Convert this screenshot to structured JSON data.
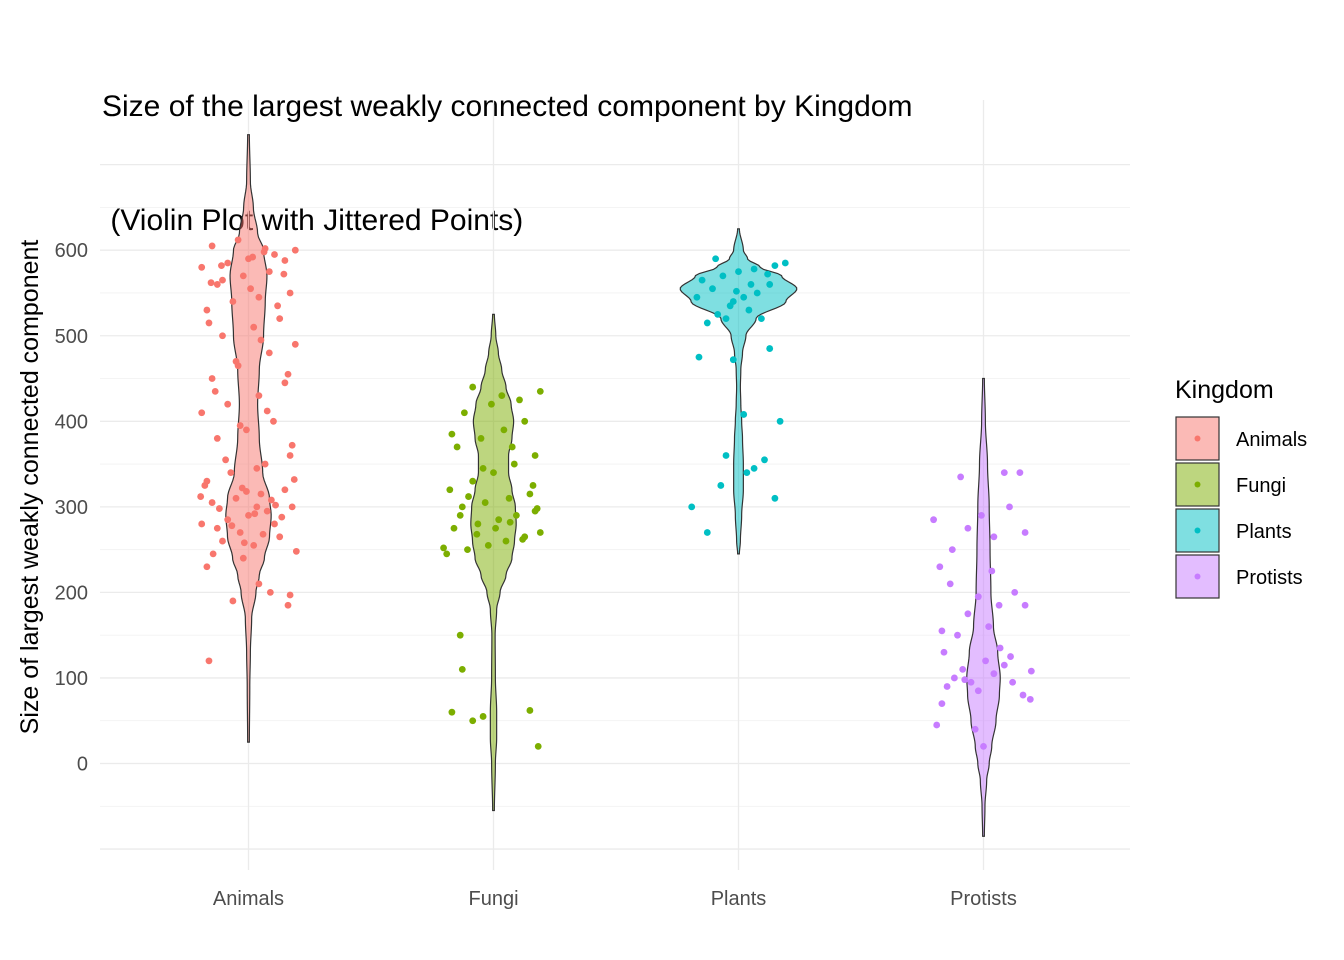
{
  "chart_data": {
    "type": "violin",
    "title": "Size of the largest weakly connected component by Kingdom",
    "subtitle": " (Violin Plot with Jittered Points)",
    "xlabel": "",
    "ylabel": "Size of  largest weakly connected component",
    "ylim": [
      -100,
      720
    ],
    "yticks": [
      0,
      100,
      200,
      300,
      400,
      500,
      600
    ],
    "ytick_labels": [
      "0",
      "100",
      "200",
      "300",
      "400",
      "500",
      "600"
    ],
    "categories": [
      "Animals",
      "Fungi",
      "Plants",
      "Protists"
    ],
    "grid": true,
    "legend": {
      "title": "Kingdom",
      "position": "right",
      "entries": [
        "Animals",
        "Fungi",
        "Plants",
        "Protists"
      ]
    },
    "colors": {
      "Animals": "#F8766D",
      "Fungi": "#7CAE00",
      "Plants": "#00BFC4",
      "Protists": "#C77CFF"
    },
    "violins": [
      {
        "name": "Animals",
        "range": [
          25,
          735
        ],
        "width_profile": [
          [
            25,
            0.3
          ],
          [
            90,
            0.8
          ],
          [
            130,
            1.5
          ],
          [
            170,
            3
          ],
          [
            200,
            8
          ],
          [
            220,
            12
          ],
          [
            240,
            18
          ],
          [
            265,
            24
          ],
          [
            290,
            26
          ],
          [
            310,
            24
          ],
          [
            340,
            16
          ],
          [
            380,
            12
          ],
          [
            420,
            10
          ],
          [
            460,
            12
          ],
          [
            500,
            17
          ],
          [
            540,
            19
          ],
          [
            570,
            21
          ],
          [
            600,
            17
          ],
          [
            620,
            10
          ],
          [
            650,
            5
          ],
          [
            680,
            1.5
          ],
          [
            735,
            0.3
          ]
        ],
        "points": [
          [
            0.12,
            120
          ],
          [
            0.35,
            190
          ],
          [
            0.71,
            200
          ],
          [
            0.88,
            185
          ],
          [
            0.9,
            197
          ],
          [
            0.1,
            230
          ],
          [
            0.45,
            240
          ],
          [
            0.6,
            210
          ],
          [
            0.25,
            260
          ],
          [
            0.55,
            255
          ],
          [
            0.8,
            265
          ],
          [
            0.05,
            280
          ],
          [
            0.3,
            285
          ],
          [
            0.5,
            290
          ],
          [
            0.68,
            295
          ],
          [
            0.92,
            300
          ],
          [
            0.15,
            305
          ],
          [
            0.38,
            310
          ],
          [
            0.62,
            315
          ],
          [
            0.85,
            320
          ],
          [
            0.2,
            275
          ],
          [
            0.75,
            280
          ],
          [
            0.42,
            270
          ],
          [
            0.58,
            300
          ],
          [
            0.1,
            330
          ],
          [
            0.33,
            340
          ],
          [
            0.66,
            350
          ],
          [
            0.9,
            360
          ],
          [
            0.2,
            380
          ],
          [
            0.48,
            390
          ],
          [
            0.74,
            400
          ],
          [
            0.05,
            410
          ],
          [
            0.3,
            420
          ],
          [
            0.6,
            430
          ],
          [
            0.85,
            445
          ],
          [
            0.15,
            450
          ],
          [
            0.4,
            465
          ],
          [
            0.7,
            480
          ],
          [
            0.95,
            490
          ],
          [
            0.25,
            500
          ],
          [
            0.55,
            510
          ],
          [
            0.8,
            520
          ],
          [
            0.1,
            530
          ],
          [
            0.35,
            540
          ],
          [
            0.6,
            545
          ],
          [
            0.9,
            550
          ],
          [
            0.2,
            560
          ],
          [
            0.45,
            570
          ],
          [
            0.7,
            575
          ],
          [
            0.05,
            580
          ],
          [
            0.3,
            585
          ],
          [
            0.5,
            590
          ],
          [
            0.75,
            595
          ],
          [
            0.95,
            600
          ],
          [
            0.15,
            605
          ],
          [
            0.4,
            612
          ],
          [
            0.65,
            598
          ],
          [
            0.85,
            588
          ],
          [
            0.25,
            565
          ],
          [
            0.52,
            555
          ],
          [
            0.78,
            535
          ],
          [
            0.12,
            515
          ],
          [
            0.62,
            495
          ],
          [
            0.38,
            470
          ],
          [
            0.88,
            455
          ],
          [
            0.18,
            435
          ],
          [
            0.68,
            412
          ],
          [
            0.42,
            395
          ],
          [
            0.92,
            372
          ],
          [
            0.28,
            355
          ],
          [
            0.58,
            345
          ],
          [
            0.08,
            325
          ],
          [
            0.48,
            318
          ],
          [
            0.72,
            308
          ],
          [
            0.22,
            298
          ],
          [
            0.82,
            288
          ],
          [
            0.34,
            278
          ],
          [
            0.64,
            268
          ],
          [
            0.46,
            258
          ],
          [
            0.96,
            248
          ],
          [
            0.16,
            245
          ],
          [
            0.56,
            292
          ],
          [
            0.76,
            302
          ],
          [
            0.04,
            312
          ],
          [
            0.44,
            322
          ],
          [
            0.94,
            332
          ],
          [
            0.24,
            582
          ],
          [
            0.54,
            592
          ],
          [
            0.84,
            572
          ],
          [
            0.14,
            562
          ],
          [
            0.66,
            602
          ]
        ]
      },
      {
        "name": "Fungi",
        "range": [
          -55,
          525
        ],
        "width_profile": [
          [
            -55,
            0.3
          ],
          [
            0,
            1.5
          ],
          [
            30,
            3
          ],
          [
            60,
            3
          ],
          [
            100,
            1.5
          ],
          [
            150,
            1.2
          ],
          [
            180,
            3
          ],
          [
            200,
            7
          ],
          [
            220,
            14
          ],
          [
            240,
            21
          ],
          [
            260,
            24
          ],
          [
            280,
            26
          ],
          [
            300,
            25
          ],
          [
            320,
            21
          ],
          [
            340,
            17
          ],
          [
            360,
            17
          ],
          [
            380,
            21
          ],
          [
            400,
            23
          ],
          [
            420,
            20
          ],
          [
            440,
            14
          ],
          [
            460,
            9
          ],
          [
            480,
            5
          ],
          [
            500,
            2
          ],
          [
            525,
            0.3
          ]
        ],
        "points": [
          [
            0.1,
            60
          ],
          [
            0.3,
            50
          ],
          [
            0.4,
            55
          ],
          [
            0.85,
            62
          ],
          [
            0.93,
            20
          ],
          [
            0.2,
            110
          ],
          [
            0.18,
            150
          ],
          [
            0.05,
            245
          ],
          [
            0.25,
            250
          ],
          [
            0.45,
            255
          ],
          [
            0.62,
            260
          ],
          [
            0.8,
            265
          ],
          [
            0.95,
            270
          ],
          [
            0.12,
            275
          ],
          [
            0.35,
            280
          ],
          [
            0.55,
            285
          ],
          [
            0.72,
            290
          ],
          [
            0.9,
            295
          ],
          [
            0.2,
            300
          ],
          [
            0.42,
            305
          ],
          [
            0.65,
            310
          ],
          [
            0.85,
            315
          ],
          [
            0.08,
            320
          ],
          [
            0.3,
            330
          ],
          [
            0.5,
            340
          ],
          [
            0.7,
            350
          ],
          [
            0.9,
            360
          ],
          [
            0.15,
            370
          ],
          [
            0.38,
            380
          ],
          [
            0.6,
            390
          ],
          [
            0.8,
            400
          ],
          [
            0.22,
            410
          ],
          [
            0.48,
            420
          ],
          [
            0.75,
            425
          ],
          [
            0.95,
            435
          ],
          [
            0.3,
            440
          ],
          [
            0.58,
            430
          ],
          [
            0.1,
            385
          ],
          [
            0.68,
            370
          ],
          [
            0.4,
            345
          ],
          [
            0.88,
            325
          ],
          [
            0.18,
            290
          ],
          [
            0.52,
            275
          ],
          [
            0.78,
            262
          ],
          [
            0.02,
            252
          ],
          [
            0.34,
            268
          ],
          [
            0.66,
            282
          ],
          [
            0.92,
            298
          ],
          [
            0.26,
            312
          ]
        ]
      },
      {
        "name": "Plants",
        "range": [
          245,
          625
        ],
        "width_profile": [
          [
            245,
            0.3
          ],
          [
            260,
            1.5
          ],
          [
            290,
            3
          ],
          [
            320,
            5
          ],
          [
            350,
            5
          ],
          [
            380,
            4
          ],
          [
            400,
            3
          ],
          [
            420,
            2
          ],
          [
            440,
            1.5
          ],
          [
            460,
            2
          ],
          [
            480,
            4
          ],
          [
            500,
            8
          ],
          [
            520,
            20
          ],
          [
            540,
            55
          ],
          [
            555,
            68
          ],
          [
            570,
            50
          ],
          [
            580,
            25
          ],
          [
            590,
            10
          ],
          [
            600,
            5
          ],
          [
            625,
            0.3
          ]
        ],
        "points": [
          [
            0.05,
            300
          ],
          [
            0.2,
            270
          ],
          [
            0.33,
            325
          ],
          [
            0.58,
            340
          ],
          [
            0.85,
            310
          ],
          [
            0.65,
            345
          ],
          [
            0.75,
            355
          ],
          [
            0.9,
            400
          ],
          [
            0.38,
            360
          ],
          [
            0.55,
            408
          ],
          [
            0.45,
            472
          ],
          [
            0.12,
            475
          ],
          [
            0.8,
            485
          ],
          [
            0.2,
            515
          ],
          [
            0.3,
            525
          ],
          [
            0.42,
            535
          ],
          [
            0.55,
            545
          ],
          [
            0.68,
            550
          ],
          [
            0.8,
            560
          ],
          [
            0.15,
            565
          ],
          [
            0.35,
            570
          ],
          [
            0.5,
            575
          ],
          [
            0.65,
            578
          ],
          [
            0.85,
            582
          ],
          [
            0.25,
            555
          ],
          [
            0.45,
            540
          ],
          [
            0.6,
            530
          ],
          [
            0.72,
            520
          ],
          [
            0.95,
            585
          ],
          [
            0.1,
            545
          ],
          [
            0.28,
            590
          ],
          [
            0.62,
            560
          ],
          [
            0.48,
            552
          ],
          [
            0.78,
            572
          ],
          [
            0.38,
            520
          ]
        ]
      },
      {
        "name": "Protists",
        "range": [
          -85,
          450
        ],
        "width_profile": [
          [
            -85,
            0.3
          ],
          [
            -50,
            1
          ],
          [
            -20,
            3
          ],
          [
            0,
            6
          ],
          [
            20,
            9
          ],
          [
            50,
            14
          ],
          [
            80,
            18
          ],
          [
            100,
            19
          ],
          [
            130,
            16
          ],
          [
            160,
            11
          ],
          [
            200,
            8
          ],
          [
            250,
            7
          ],
          [
            300,
            6
          ],
          [
            350,
            4
          ],
          [
            400,
            1.5
          ],
          [
            450,
            0.3
          ]
        ],
        "points": [
          [
            0.05,
            45
          ],
          [
            0.1,
            70
          ],
          [
            0.15,
            90
          ],
          [
            0.22,
            100
          ],
          [
            0.3,
            110
          ],
          [
            0.38,
            95
          ],
          [
            0.45,
            85
          ],
          [
            0.52,
            120
          ],
          [
            0.6,
            105
          ],
          [
            0.7,
            115
          ],
          [
            0.78,
            95
          ],
          [
            0.88,
            80
          ],
          [
            0.95,
            75
          ],
          [
            0.12,
            130
          ],
          [
            0.25,
            150
          ],
          [
            0.35,
            175
          ],
          [
            0.45,
            195
          ],
          [
            0.55,
            160
          ],
          [
            0.65,
            185
          ],
          [
            0.8,
            200
          ],
          [
            0.9,
            185
          ],
          [
            0.08,
            230
          ],
          [
            0.2,
            250
          ],
          [
            0.35,
            275
          ],
          [
            0.48,
            290
          ],
          [
            0.6,
            265
          ],
          [
            0.75,
            300
          ],
          [
            0.9,
            270
          ],
          [
            0.02,
            285
          ],
          [
            0.42,
            40
          ],
          [
            0.5,
            20
          ],
          [
            0.28,
            335
          ],
          [
            0.7,
            340
          ],
          [
            0.85,
            340
          ],
          [
            0.18,
            210
          ],
          [
            0.58,
            225
          ],
          [
            0.66,
            135
          ],
          [
            0.32,
            98
          ],
          [
            0.76,
            125
          ],
          [
            0.96,
            108
          ],
          [
            0.1,
            155
          ]
        ]
      }
    ]
  }
}
